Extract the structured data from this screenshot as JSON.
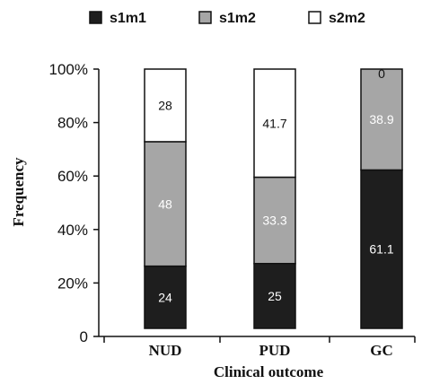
{
  "chart_data": {
    "type": "bar",
    "stacked": true,
    "categories": [
      "NUD",
      "PUD",
      "GC"
    ],
    "series": [
      {
        "name": "s1m1",
        "values": [
          24,
          25,
          61.1
        ],
        "color": "#1e1e1e",
        "labels": [
          "24",
          "25",
          "61.1"
        ],
        "label_color": "#ffffff"
      },
      {
        "name": "s1m2",
        "values": [
          48,
          33.3,
          38.9
        ],
        "color": "#a6a6a6",
        "labels": [
          "48",
          "33.3",
          "38.9"
        ],
        "label_color": "#ffffff"
      },
      {
        "name": "s2m2",
        "values": [
          28,
          41.7,
          0
        ],
        "color": "#ffffff",
        "labels": [
          "28",
          "41.7",
          "0"
        ],
        "label_color": "#111111"
      }
    ],
    "xlabel": "Clinical outcome",
    "ylabel": "Frequency",
    "ylim": [
      0,
      100
    ],
    "yticks": [
      {
        "value": 0,
        "label": "0"
      },
      {
        "value": 20,
        "label": "20%"
      },
      {
        "value": 40,
        "label": "40%"
      },
      {
        "value": 60,
        "label": "60%"
      },
      {
        "value": 80,
        "label": "80%"
      },
      {
        "value": 100,
        "label": "100%"
      }
    ],
    "legend": {
      "position": "top"
    },
    "grid": false
  }
}
